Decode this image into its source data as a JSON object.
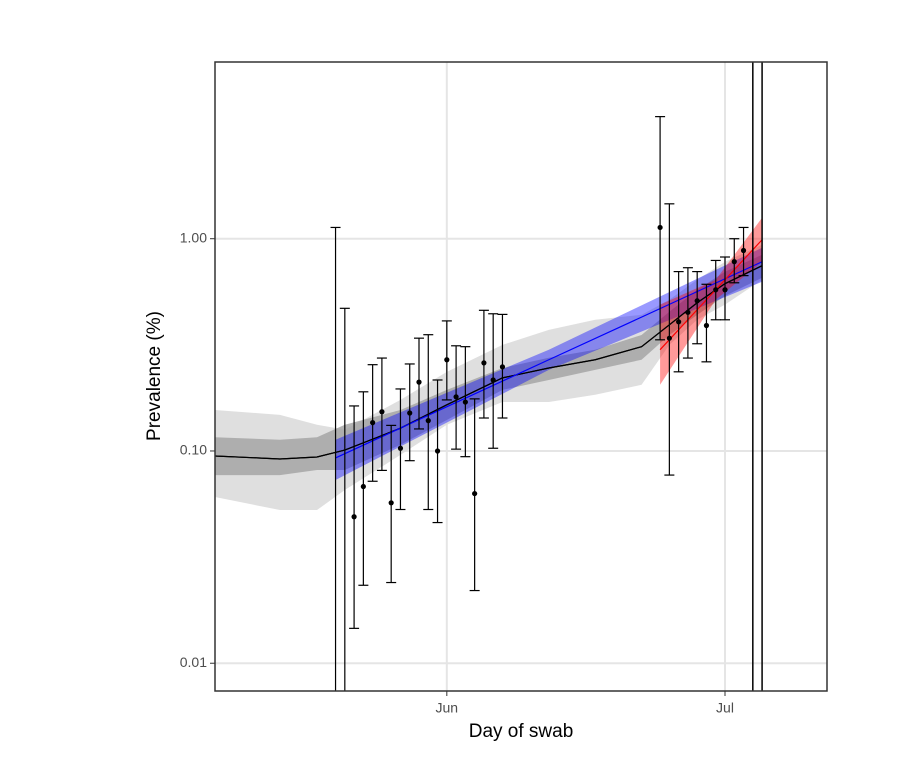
{
  "chart_data": {
    "type": "scatter",
    "x_label": "Day of swab",
    "y_label": "Prevalence (%)",
    "xlim": [
      -25,
      41
    ],
    "ylim": [
      0.0074,
      6.8
    ],
    "log_y": true,
    "grid": true,
    "xticks": [
      {
        "value": 0,
        "label": "Jun"
      },
      {
        "value": 30,
        "label": "Jul"
      }
    ],
    "yticks": [
      {
        "value": 0.01,
        "label": "0.01"
      },
      {
        "value": 0.1,
        "label": "0.10"
      },
      {
        "value": 1,
        "label": "1.00"
      }
    ],
    "points": {
      "color": "#000000",
      "x": [
        -12,
        -11,
        -10,
        -9,
        -8,
        -7,
        -6,
        -5,
        -4,
        -3,
        -2,
        -1,
        0,
        1,
        2,
        3,
        4,
        5,
        6,
        23,
        24,
        25,
        26,
        27,
        28,
        29,
        30,
        31,
        32
      ],
      "values": [
        null,
        null,
        0.049,
        0.068,
        0.136,
        0.153,
        0.057,
        0.103,
        0.151,
        0.211,
        0.139,
        0.1,
        0.269,
        0.18,
        0.17,
        0.063,
        0.26,
        0.216,
        0.249,
        1.13,
        0.34,
        0.406,
        0.45,
        0.51,
        0.39,
        0.575,
        0.575,
        0.78,
        0.88
      ],
      "lower": [
        null,
        null,
        0.0146,
        0.0233,
        0.072,
        0.081,
        0.024,
        0.053,
        0.09,
        0.127,
        0.053,
        0.046,
        0.174,
        0.102,
        0.094,
        0.022,
        0.143,
        0.103,
        0.143,
        0.334,
        0.077,
        0.236,
        0.274,
        0.32,
        0.263,
        0.415,
        0.415,
        0.62,
        0.67
      ],
      "upper": [
        1.13,
        0.47,
        0.163,
        0.19,
        0.255,
        0.274,
        0.132,
        0.196,
        0.257,
        0.34,
        0.353,
        0.216,
        0.41,
        0.313,
        0.31,
        0.176,
        0.46,
        0.443,
        0.44,
        3.76,
        1.46,
        0.7,
        0.73,
        0.7,
        0.61,
        0.79,
        0.82,
        1.0,
        1.13
      ]
    },
    "vlines": [
      33,
      34
    ],
    "fits": [
      {
        "color": "#000000",
        "fill": "#d9d9d9",
        "x": [
          -25,
          -18,
          -14,
          -11,
          -5,
          0,
          6,
          11,
          16,
          21,
          24,
          27,
          30,
          34
        ],
        "values": [
          0.0947,
          0.0917,
          0.0937,
          0.101,
          0.128,
          0.165,
          0.221,
          0.246,
          0.269,
          0.31,
          0.393,
          0.499,
          0.614,
          0.746
        ],
        "lower": [
          0.0607,
          0.0527,
          0.0527,
          0.0655,
          0.0958,
          0.133,
          0.17,
          0.17,
          0.184,
          0.205,
          0.316,
          0.415,
          0.489,
          0.641
        ],
        "upper": [
          0.156,
          0.148,
          0.133,
          0.126,
          0.174,
          0.236,
          0.316,
          0.372,
          0.415,
          0.438,
          0.516,
          0.641,
          0.779,
          0.937
        ]
      },
      {
        "color": "#000000",
        "fill": "#a6a6a6",
        "x": [
          -25,
          -18,
          -14,
          -11,
          -5,
          0,
          6,
          11,
          16,
          21,
          24,
          27,
          30,
          34
        ],
        "values": [
          0.0947,
          0.0917,
          0.0937,
          0.101,
          0.128,
          0.165,
          0.221,
          0.246,
          0.269,
          0.31,
          0.393,
          0.499,
          0.614,
          0.746
        ],
        "lower": [
          0.077,
          0.077,
          0.0813,
          0.0813,
          0.107,
          0.14,
          0.194,
          0.216,
          0.241,
          0.269,
          0.352,
          0.438,
          0.538,
          0.655
        ],
        "upper": [
          0.116,
          0.113,
          0.116,
          0.133,
          0.156,
          0.194,
          0.246,
          0.275,
          0.3,
          0.352,
          0.453,
          0.575,
          0.699,
          0.84
        ]
      },
      {
        "color": "#0000ff",
        "fill": "#0000ff",
        "x": [
          -12,
          11,
          34
        ],
        "values": [
          0.0927,
          0.269,
          0.779
        ],
        "lower": [
          0.073,
          0.241,
          0.627
        ],
        "upper": [
          0.113,
          0.3,
          0.907
        ]
      },
      {
        "color": "#ff0000",
        "fill": "#ff0000",
        "x": [
          23,
          29,
          34
        ],
        "values": [
          0.3,
          0.575,
          0.989
        ],
        "lower": [
          0.205,
          0.516,
          0.779
        ],
        "upper": [
          0.489,
          0.641,
          1.256
        ]
      }
    ]
  }
}
